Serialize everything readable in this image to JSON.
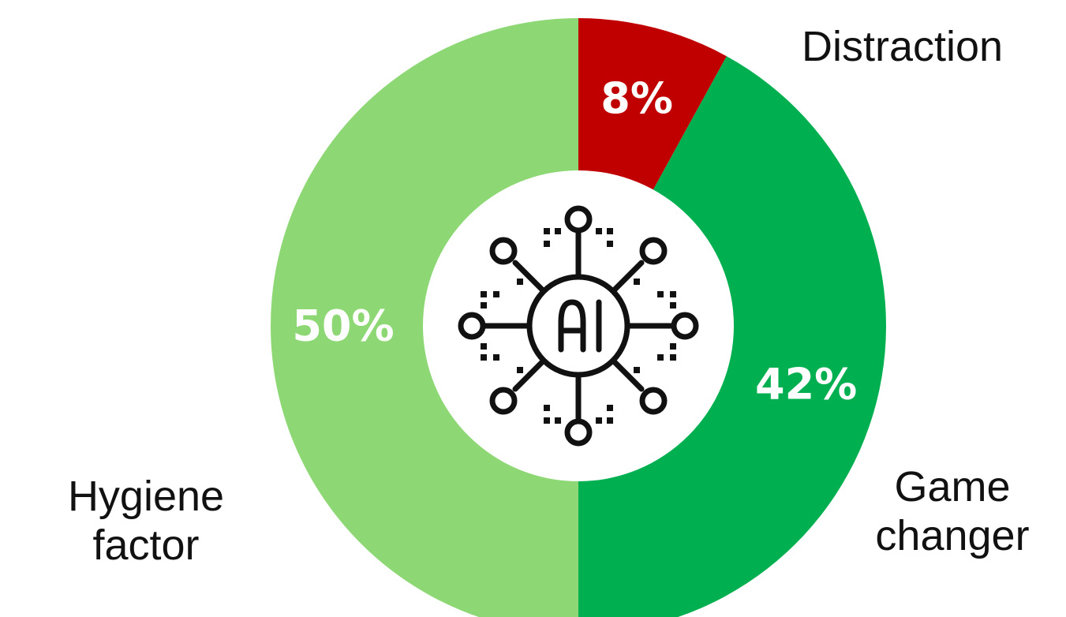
{
  "chart_data": {
    "type": "pie",
    "title": "",
    "categories": [
      "Distraction",
      "Game changer",
      "Hygiene factor"
    ],
    "values": [
      8,
      42,
      50
    ],
    "value_labels": [
      "8%",
      "42%",
      "50%"
    ],
    "colors": [
      "#c00000",
      "#00b050",
      "#8dd875"
    ],
    "category_labels": {
      "distraction": "Distraction",
      "game_line1": "Game",
      "game_line2": "changer",
      "hygiene_line1": "Hygiene",
      "hygiene_line2": "factor"
    },
    "donut": true,
    "center_icon": "ai-network-icon",
    "center_icon_text": "AI",
    "legend": "none"
  }
}
